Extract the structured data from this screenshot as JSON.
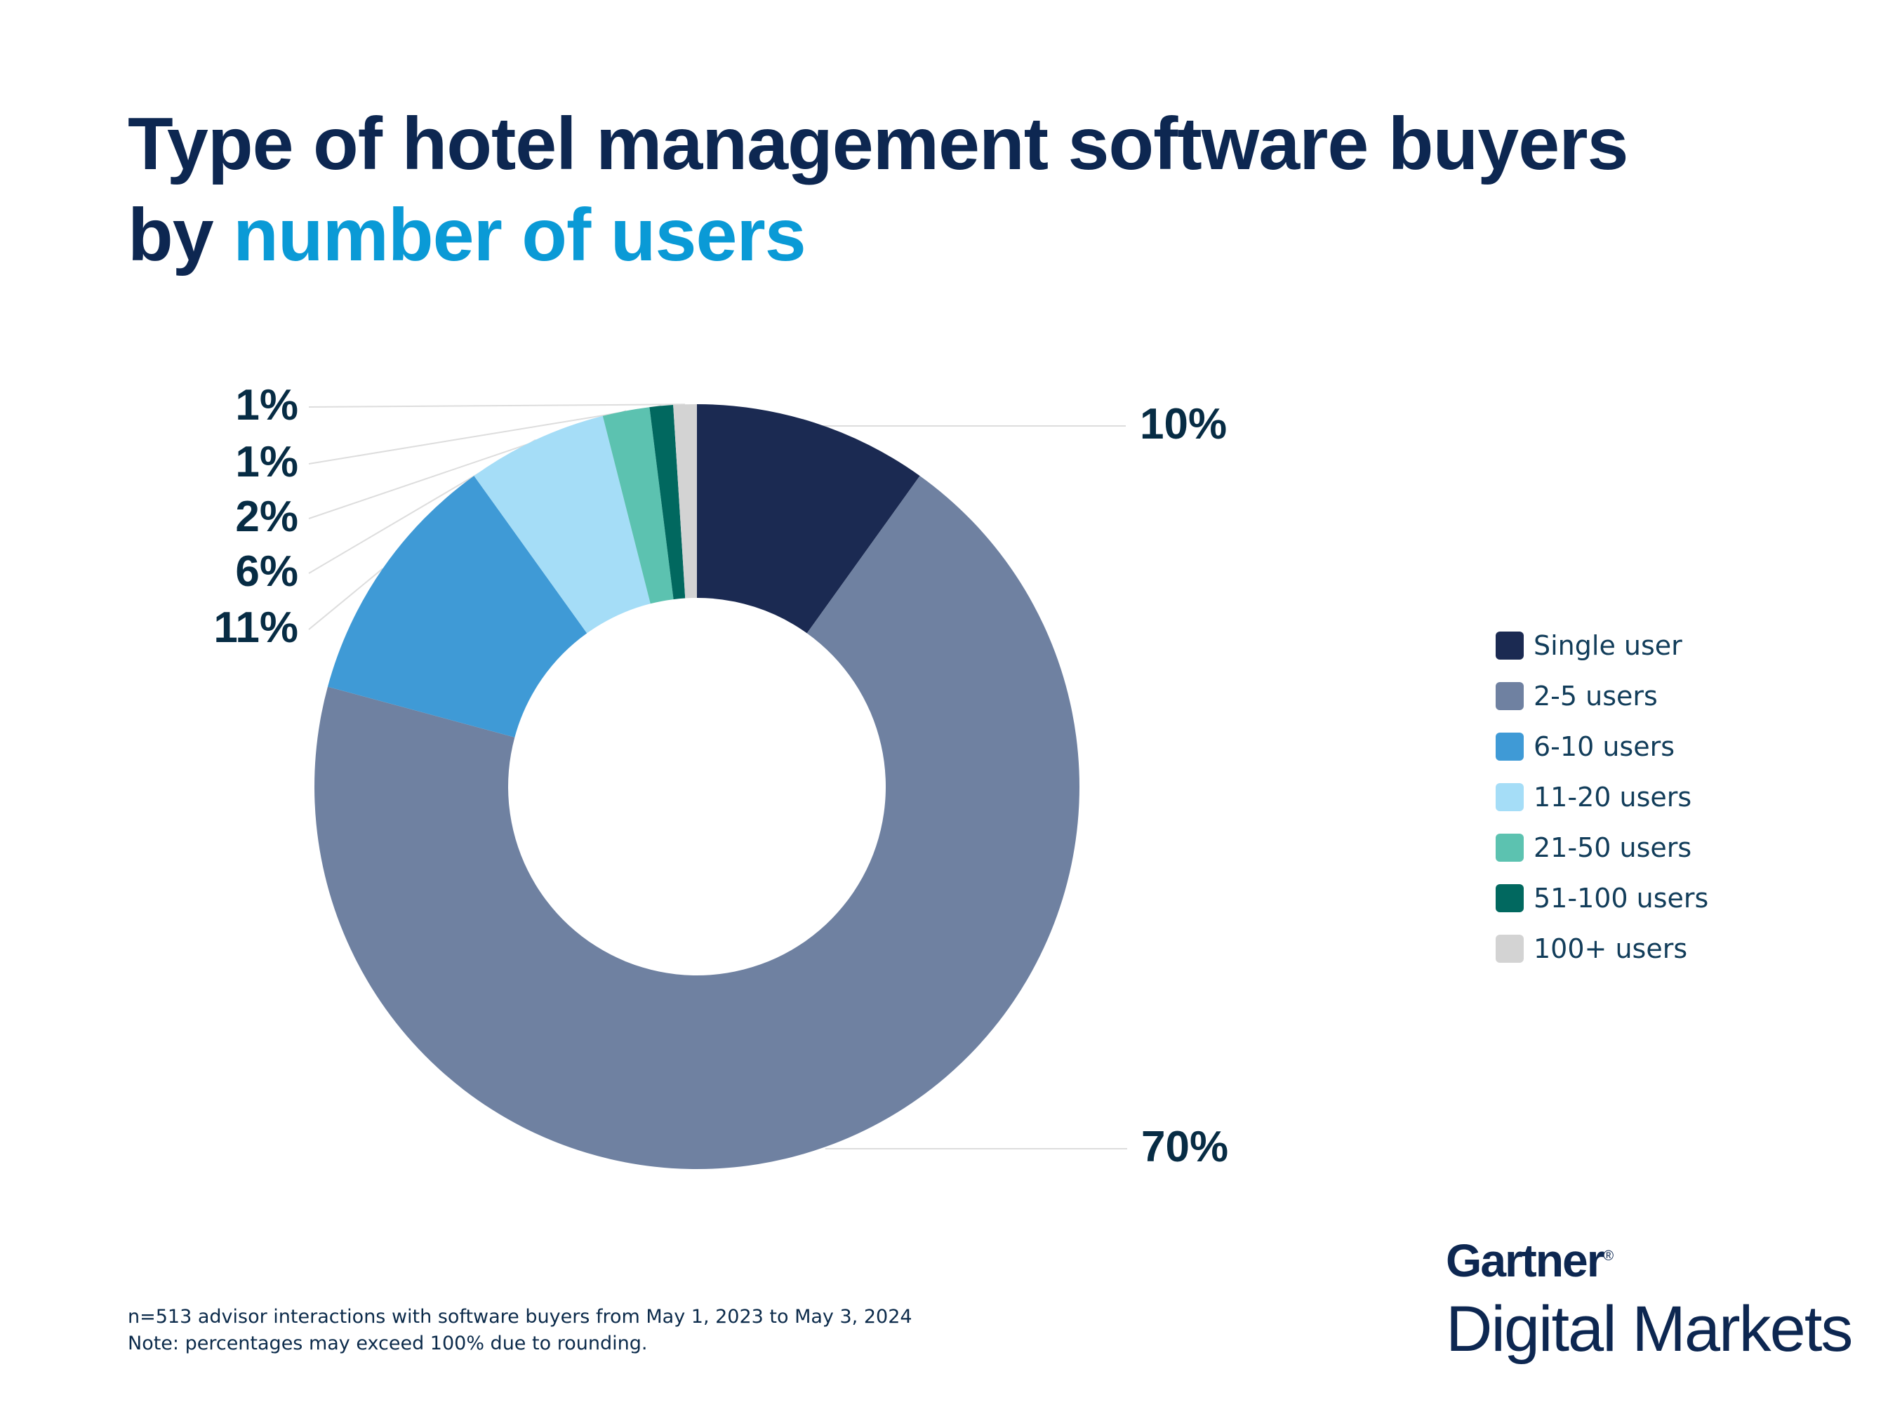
{
  "title": {
    "line1": "Type of hotel management software buyers",
    "line2_prefix": "by ",
    "line2_highlight": "number of users"
  },
  "chart_data": {
    "type": "pie",
    "subtype": "donut",
    "categories": [
      "Single user",
      "2-5 users",
      "6-10 users",
      "11-20 users",
      "21-50 users",
      "51-100 users",
      "100+ users"
    ],
    "values": [
      10,
      70,
      11,
      6,
      2,
      1,
      1
    ],
    "data_labels": [
      "10%",
      "70%",
      "11%",
      "6%",
      "2%",
      "1%",
      "1%"
    ],
    "colors": [
      "#1b2a52",
      "#6f81a1",
      "#3f9ad6",
      "#a5ddf7",
      "#5cc2b0",
      "#01685f",
      "#d3d3d3"
    ],
    "legend_position": "right",
    "start": "top, clockwise"
  },
  "footnote": {
    "line1": "n=513 advisor interactions with software buyers from May 1, 2023 to May 3, 2024",
    "line2": "Note: percentages may exceed 100% due to rounding."
  },
  "logo": {
    "brand": "Gartner",
    "registered": "®",
    "product": "Digital Markets"
  }
}
